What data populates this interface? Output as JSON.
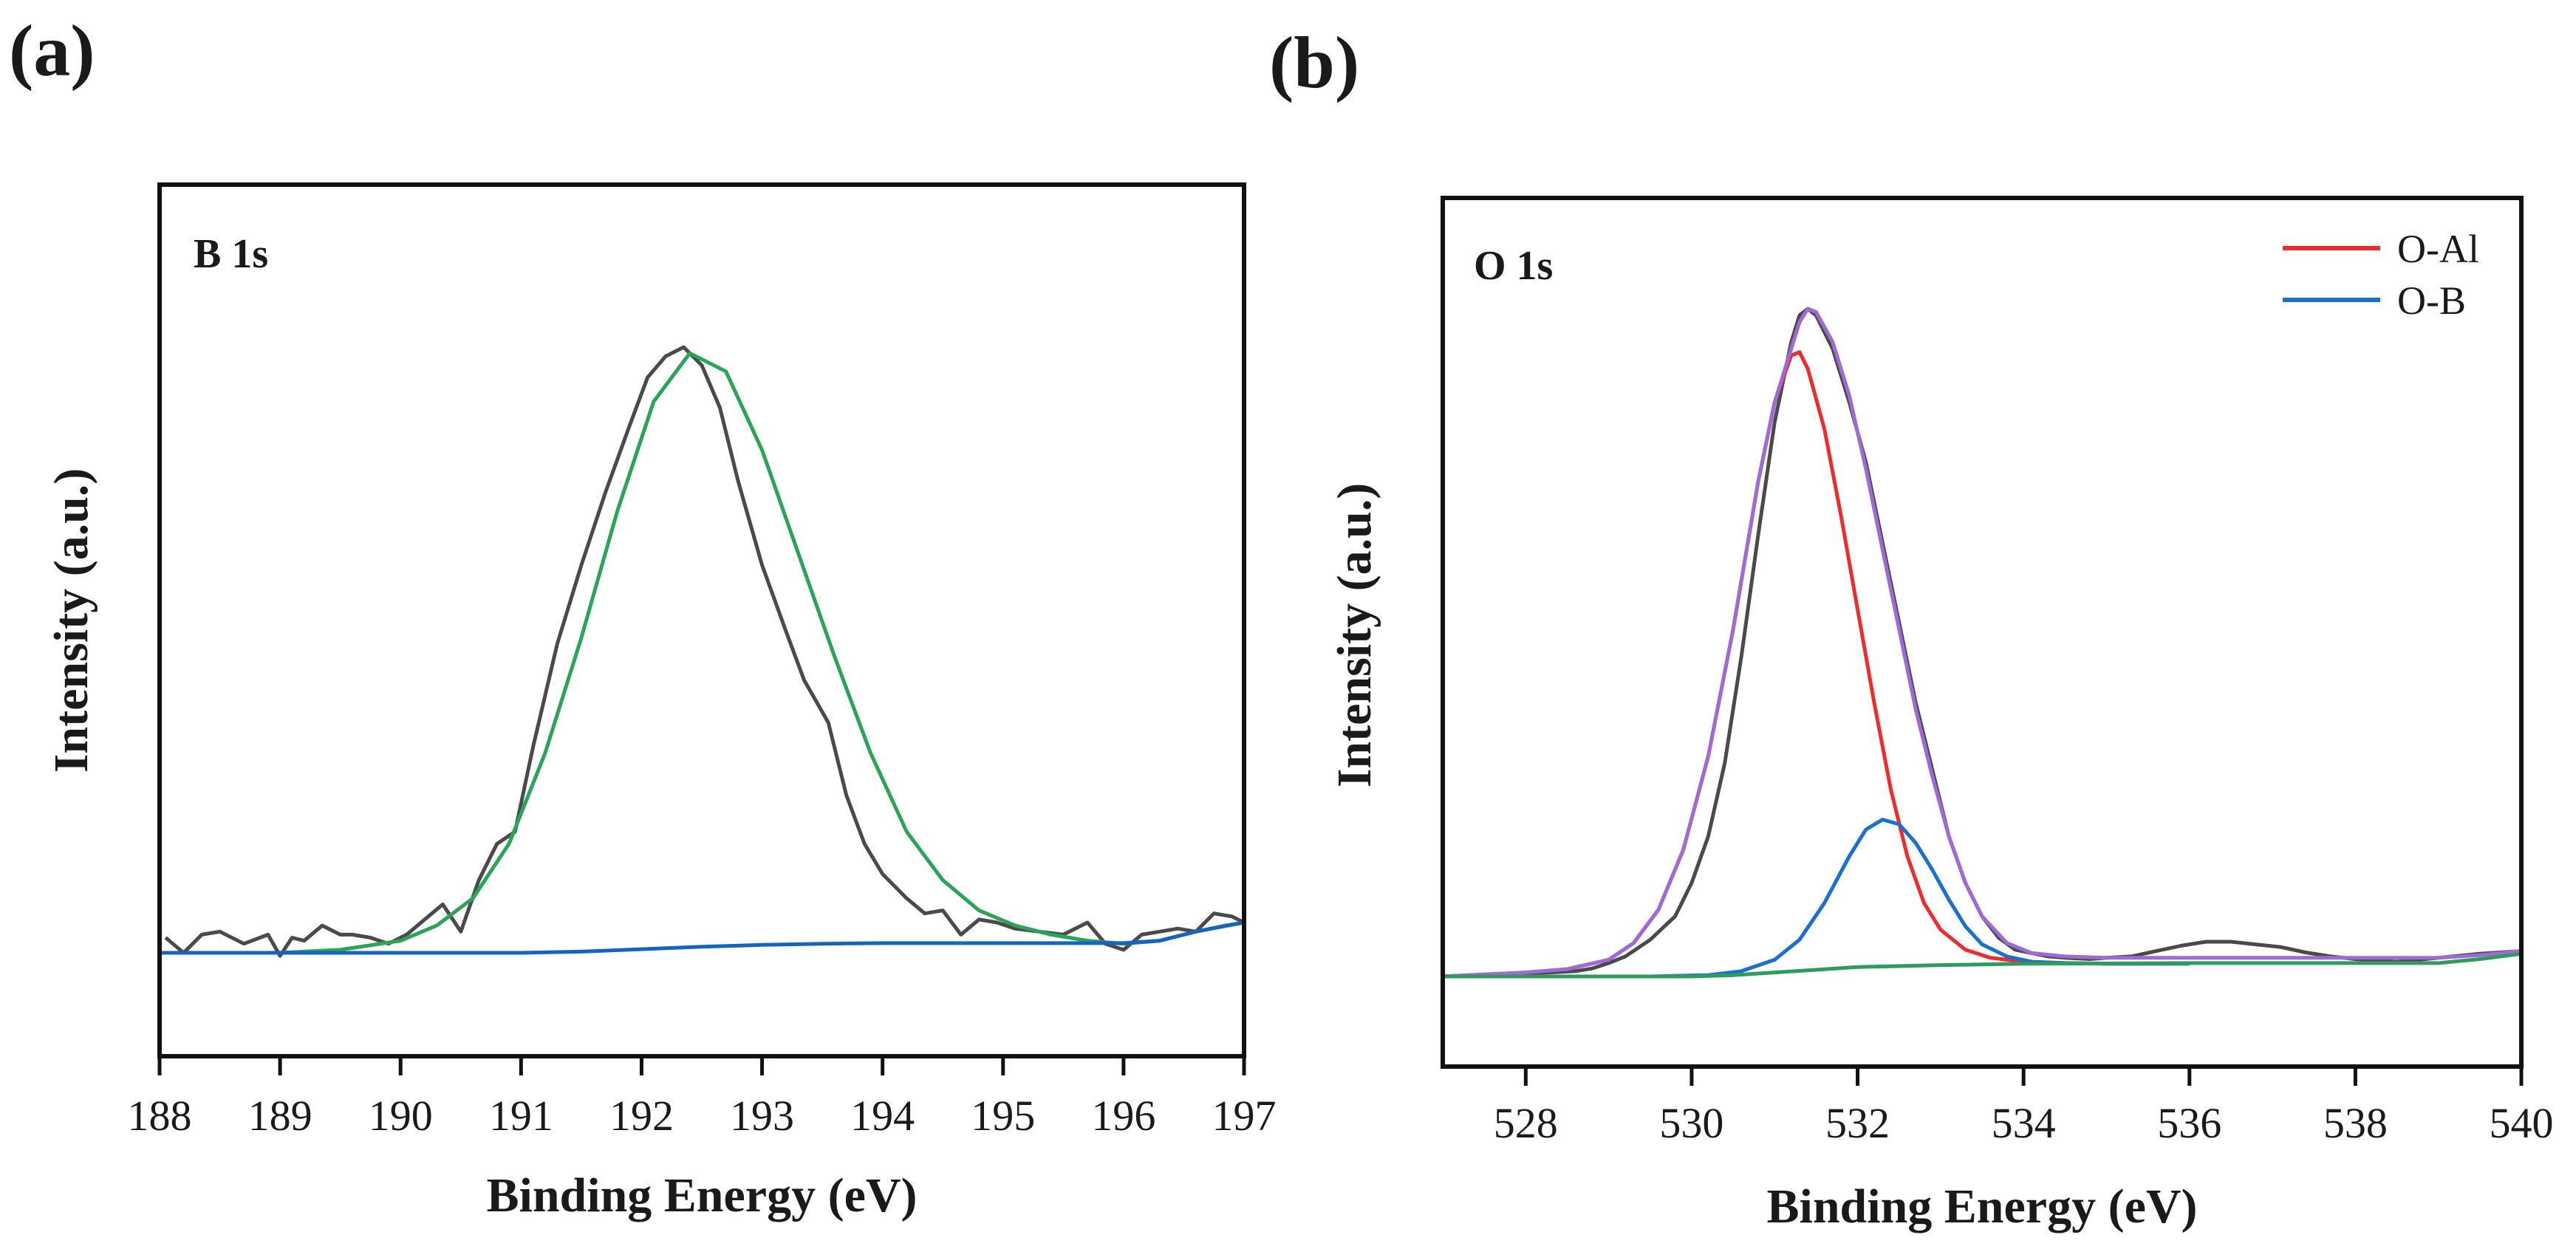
{
  "colors": {
    "raw": "#4a4a4a",
    "fit_a": "#2aa456",
    "baseline_a": "#1565c0",
    "o_al": "#ef2b2b",
    "o_b": "#1a6fd1",
    "envelope": "#a06ad6",
    "baseline_b": "#2e9c5a"
  },
  "chart_data": [
    {
      "panel_label": "(a)",
      "type": "line",
      "annotation": "B 1s",
      "xlabel": "Binding Energy (eV)",
      "ylabel": "Intensity (a.u.)",
      "xlim": [
        188,
        197
      ],
      "ylim": [
        0,
        1
      ],
      "x_ticks": [
        188,
        189,
        190,
        191,
        192,
        193,
        194,
        195,
        196,
        197
      ],
      "grid": false,
      "legend": "none",
      "series": [
        {
          "x": [
            188.05,
            188.2,
            188.35,
            188.5,
            188.7,
            188.9,
            189.0,
            189.1,
            189.2,
            189.35,
            189.5,
            189.6,
            189.75,
            189.9,
            190.05,
            190.2,
            190.35,
            190.5,
            190.65,
            190.8,
            190.95,
            191.1,
            191.3,
            191.5,
            191.7,
            191.9,
            192.05,
            192.2,
            192.35,
            192.5,
            192.65,
            192.8,
            193.0,
            193.2,
            193.35,
            193.55,
            193.7,
            193.85,
            194.0,
            194.2,
            194.35,
            194.5,
            194.65,
            194.8,
            194.95,
            195.1,
            195.3,
            195.5,
            195.7,
            195.85,
            196.0,
            196.15,
            196.3,
            196.45,
            196.6,
            196.75,
            196.9,
            197.0
          ],
          "y": [
            0.025,
            0.0,
            0.03,
            0.035,
            0.015,
            0.03,
            -0.005,
            0.025,
            0.02,
            0.045,
            0.03,
            0.03,
            0.025,
            0.015,
            0.03,
            0.055,
            0.08,
            0.035,
            0.12,
            0.18,
            0.2,
            0.34,
            0.51,
            0.64,
            0.76,
            0.87,
            0.95,
            0.985,
            1.0,
            0.97,
            0.9,
            0.78,
            0.64,
            0.53,
            0.45,
            0.38,
            0.26,
            0.18,
            0.13,
            0.09,
            0.065,
            0.07,
            0.03,
            0.055,
            0.05,
            0.04,
            0.035,
            0.03,
            0.05,
            0.015,
            0.005,
            0.03,
            0.035,
            0.04,
            0.035,
            0.065,
            0.06,
            0.05
          ]
        },
        {
          "x": [
            188.0,
            188.5,
            189.0,
            189.5,
            190.0,
            190.3,
            190.6,
            190.9,
            191.2,
            191.5,
            191.8,
            192.1,
            192.4,
            192.7,
            193.0,
            193.3,
            193.6,
            193.9,
            194.2,
            194.5,
            194.8,
            195.1,
            195.4,
            195.7,
            196.0,
            196.3,
            196.6,
            197.0
          ],
          "y": [
            0.0,
            0.0,
            0.0,
            0.005,
            0.02,
            0.045,
            0.09,
            0.18,
            0.33,
            0.52,
            0.73,
            0.91,
            0.99,
            0.96,
            0.83,
            0.66,
            0.49,
            0.33,
            0.2,
            0.12,
            0.07,
            0.045,
            0.03,
            0.02,
            0.015,
            0.02,
            0.035,
            0.05
          ]
        },
        {
          "x": [
            188.0,
            189.0,
            190.0,
            191.0,
            191.5,
            192.0,
            192.5,
            193.0,
            193.5,
            194.0,
            195.0,
            196.0,
            196.3,
            196.6,
            196.85,
            197.0
          ],
          "y": [
            0.0,
            0.0,
            0.0,
            0.0,
            0.002,
            0.006,
            0.01,
            0.013,
            0.015,
            0.016,
            0.016,
            0.016,
            0.02,
            0.035,
            0.045,
            0.05
          ]
        }
      ]
    },
    {
      "panel_label": "(b)",
      "type": "line",
      "annotation": "O 1s",
      "xlabel": "Binding Energy (eV)",
      "ylabel": "Intensity (a.u.)",
      "xlim": [
        527,
        540
      ],
      "ylim": [
        0,
        1
      ],
      "x_ticks": [
        528,
        530,
        532,
        534,
        536,
        538,
        540
      ],
      "grid": false,
      "legend": "top-right",
      "series": [
        {
          "x": [
            527.0,
            527.5,
            528.0,
            528.3,
            528.6,
            528.8,
            529.0,
            529.2,
            529.5,
            529.8,
            530.0,
            530.2,
            530.4,
            530.6,
            530.8,
            531.0,
            531.2,
            531.3,
            531.4,
            531.5,
            531.7,
            531.9,
            532.1,
            532.3,
            532.5,
            532.7,
            532.9,
            533.1,
            533.3,
            533.5,
            533.7,
            533.9,
            534.1,
            534.3,
            534.5,
            534.8,
            535.0,
            535.3,
            535.6,
            535.9,
            536.2,
            536.5,
            536.8,
            537.1,
            537.4,
            537.7,
            538.0,
            538.5,
            539.0,
            539.5,
            540.0
          ],
          "y": [
            0.0,
            0.002,
            0.005,
            0.006,
            0.008,
            0.012,
            0.02,
            0.03,
            0.055,
            0.09,
            0.14,
            0.21,
            0.32,
            0.48,
            0.66,
            0.83,
            0.95,
            0.99,
            1.0,
            0.99,
            0.94,
            0.86,
            0.77,
            0.65,
            0.53,
            0.41,
            0.31,
            0.21,
            0.14,
            0.09,
            0.058,
            0.04,
            0.035,
            0.03,
            0.028,
            0.026,
            0.028,
            0.03,
            0.038,
            0.046,
            0.052,
            0.052,
            0.048,
            0.044,
            0.036,
            0.03,
            0.026,
            0.022,
            0.028,
            0.034,
            0.038
          ]
        },
        {
          "x": [
            527.0,
            527.5,
            528.0,
            528.5,
            529.0,
            529.3,
            529.6,
            529.9,
            530.2,
            530.5,
            530.8,
            531.0,
            531.2,
            531.3,
            531.4,
            531.6,
            531.8,
            532.0,
            532.2,
            532.4,
            532.6,
            532.8,
            533.0,
            533.3,
            533.6,
            534.0,
            534.5,
            535.0,
            535.5
          ],
          "y": [
            0.0,
            0.003,
            0.006,
            0.011,
            0.025,
            0.05,
            0.1,
            0.19,
            0.33,
            0.52,
            0.74,
            0.86,
            0.93,
            0.935,
            0.91,
            0.82,
            0.69,
            0.55,
            0.41,
            0.28,
            0.18,
            0.11,
            0.07,
            0.04,
            0.028,
            0.022,
            0.02,
            0.019,
            0.019
          ]
        },
        {
          "x": [
            527.0,
            529.5,
            530.2,
            530.6,
            531.0,
            531.3,
            531.6,
            531.9,
            532.1,
            532.3,
            532.5,
            532.7,
            532.9,
            533.1,
            533.3,
            533.5,
            533.8,
            534.1,
            534.5,
            535.0,
            536.0
          ],
          "y": [
            0.0,
            0.0,
            0.002,
            0.008,
            0.025,
            0.055,
            0.11,
            0.18,
            0.22,
            0.235,
            0.228,
            0.2,
            0.16,
            0.115,
            0.075,
            0.048,
            0.03,
            0.022,
            0.02,
            0.019,
            0.019
          ]
        },
        {
          "x": [
            527.0,
            527.5,
            528.0,
            528.5,
            529.0,
            529.3,
            529.6,
            529.9,
            530.2,
            530.5,
            530.8,
            531.0,
            531.2,
            531.3,
            531.4,
            531.5,
            531.7,
            531.9,
            532.1,
            532.3,
            532.5,
            532.7,
            532.9,
            533.1,
            533.3,
            533.5,
            533.8,
            534.1,
            534.5,
            535.0,
            536.0,
            537.0,
            538.0,
            539.0,
            539.5,
            540.0
          ],
          "y": [
            0.0,
            0.003,
            0.006,
            0.011,
            0.025,
            0.05,
            0.1,
            0.19,
            0.33,
            0.52,
            0.74,
            0.86,
            0.94,
            0.98,
            1.0,
            0.995,
            0.95,
            0.87,
            0.76,
            0.64,
            0.52,
            0.4,
            0.3,
            0.21,
            0.14,
            0.09,
            0.05,
            0.035,
            0.03,
            0.028,
            0.028,
            0.028,
            0.028,
            0.028,
            0.032,
            0.038
          ]
        },
        {
          "x": [
            527.0,
            529.0,
            530.0,
            530.5,
            531.0,
            531.5,
            532.0,
            533.0,
            534.0,
            536.0,
            538.0,
            539.0,
            539.5,
            540.0
          ],
          "y": [
            0.0,
            0.0,
            0.0,
            0.002,
            0.006,
            0.01,
            0.014,
            0.017,
            0.019,
            0.02,
            0.02,
            0.02,
            0.026,
            0.034
          ]
        }
      ],
      "legend_entries": [
        {
          "label": "O-Al",
          "color": "#ef2b2b"
        },
        {
          "label": "O-B",
          "color": "#1a6fd1"
        }
      ]
    }
  ]
}
